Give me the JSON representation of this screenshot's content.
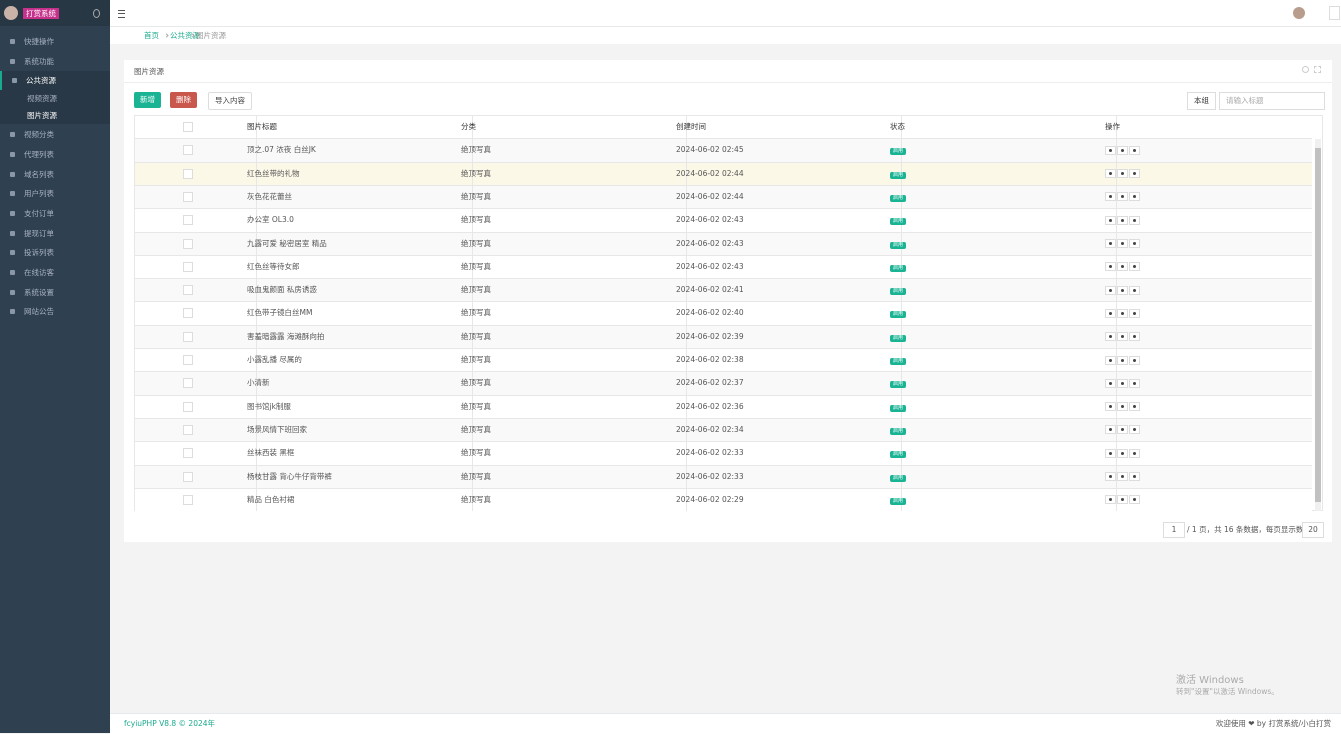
{
  "sidebar": {
    "brand": "打赏系统",
    "menu": [
      {
        "label": "快捷操作"
      },
      {
        "label": "系统功能"
      },
      {
        "label": "公共资源",
        "children": [
          "视频资源",
          "图片资源"
        ]
      },
      {
        "label": "视频分类"
      },
      {
        "label": "代理列表"
      },
      {
        "label": "域名列表"
      },
      {
        "label": "用户列表"
      },
      {
        "label": "支付订单"
      },
      {
        "label": "提现订单"
      },
      {
        "label": "投诉列表"
      },
      {
        "label": "在线访客"
      },
      {
        "label": "系统设置"
      },
      {
        "label": "网站公告"
      }
    ]
  },
  "breadcrumb": [
    "首页",
    "公共资源",
    "图片资源"
  ],
  "panel": {
    "title": "图片资源",
    "buttons": [
      "新增",
      "删除",
      "导入内容"
    ],
    "search_field": "本组",
    "search_placeholder": "请输入标题"
  },
  "table": {
    "headers": [
      "图片标题",
      "分类",
      "创建时间",
      "状态",
      "操作"
    ],
    "rows": [
      [
        "顶之.07 浓夜 白丝JK",
        "绝顶写真",
        "2024-06-02 02:45",
        "启用"
      ],
      [
        "红色丝带的礼物",
        "绝顶写真",
        "2024-06-02 02:44",
        "启用"
      ],
      [
        "灰色花花蕾丝",
        "绝顶写真",
        "2024-06-02 02:44",
        "启用"
      ],
      [
        "办公室 OL3.0",
        "绝顶写真",
        "2024-06-02 02:43",
        "启用"
      ],
      [
        "九露可爱 秘密居室 精品",
        "绝顶写真",
        "2024-06-02 02:43",
        "启用"
      ],
      [
        "红色丝等待女郎",
        "绝顶写真",
        "2024-06-02 02:43",
        "启用"
      ],
      [
        "吸血鬼颜面 私房诱惑",
        "绝顶写真",
        "2024-06-02 02:41",
        "启用"
      ],
      [
        "红色带子镜白丝MM",
        "绝顶写真",
        "2024-06-02 02:40",
        "启用"
      ],
      [
        "害羞暗露露 海滩酥向拍",
        "绝顶写真",
        "2024-06-02 02:39",
        "启用"
      ],
      [
        "小露乱播 尽属的",
        "绝顶写真",
        "2024-06-02 02:38",
        "启用"
      ],
      [
        "小清新",
        "绝顶写真",
        "2024-06-02 02:37",
        "启用"
      ],
      [
        "图书馆jk制服",
        "绝顶写真",
        "2024-06-02 02:36",
        "启用"
      ],
      [
        "场景风情下班回家",
        "绝顶写真",
        "2024-06-02 02:34",
        "启用"
      ],
      [
        "丝袜西装 黑框",
        "绝顶写真",
        "2024-06-02 02:33",
        "启用"
      ],
      [
        "杨枝甘露 背心牛仔背带裤",
        "绝顶写真",
        "2024-06-02 02:33",
        "启用"
      ],
      [
        "精品 白色衬裙",
        "绝顶写真",
        "2024-06-02 02:29",
        "启用"
      ]
    ]
  },
  "pagination": {
    "page": "1",
    "summary": "/ 1 页，共 16 条数据，每页显示数量",
    "page_size": "20"
  },
  "footer": {
    "left": "fcyiuPHP V8.8 © 2024年",
    "right": "欢迎使用 ❤ by 打赏系统/小白打赏"
  },
  "watermark": {
    "title": "激活 Windows",
    "subtitle": "转到\"设置\"以激活 Windows。"
  }
}
